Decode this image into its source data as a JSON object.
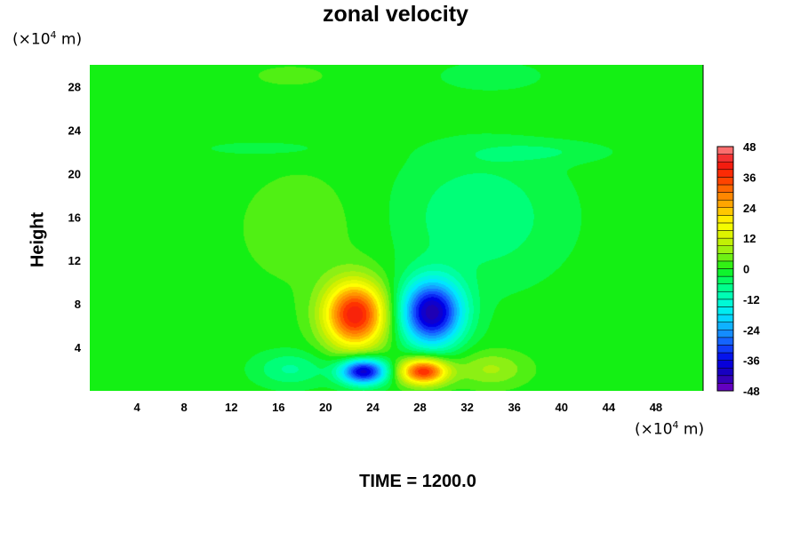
{
  "chart_data": {
    "type": "heatmap",
    "title": "zonal velocity",
    "ylabel": "Height",
    "y_unit": {
      "prefix": "(×10",
      "exp": "4",
      "suffix": " m)"
    },
    "x_unit": {
      "prefix": "(×10",
      "exp": "4",
      "suffix": " m)"
    },
    "xlim": [
      0,
      52
    ],
    "ylim": [
      0,
      30
    ],
    "x_ticks": [
      4,
      8,
      12,
      16,
      20,
      24,
      28,
      32,
      36,
      40,
      44,
      48
    ],
    "y_ticks": [
      4,
      8,
      12,
      16,
      20,
      24,
      28
    ],
    "colorbar": {
      "range": [
        -48,
        48
      ],
      "ticks": [
        48,
        36,
        24,
        12,
        0,
        -12,
        -24,
        -36,
        -48
      ],
      "stops": [
        {
          "v": -48,
          "c": "#7a00c4"
        },
        {
          "v": -42,
          "c": "#1e00b4"
        },
        {
          "v": -36,
          "c": "#0000e6"
        },
        {
          "v": -30,
          "c": "#1450ff"
        },
        {
          "v": -24,
          "c": "#14a0ff"
        },
        {
          "v": -18,
          "c": "#00e6ff"
        },
        {
          "v": -12,
          "c": "#00ffc8"
        },
        {
          "v": -6,
          "c": "#00ff78"
        },
        {
          "v": 0,
          "c": "#14f014"
        },
        {
          "v": 6,
          "c": "#8cf014"
        },
        {
          "v": 12,
          "c": "#d2f000"
        },
        {
          "v": 18,
          "c": "#ffff00"
        },
        {
          "v": 24,
          "c": "#ffb400"
        },
        {
          "v": 30,
          "c": "#ff7800"
        },
        {
          "v": 36,
          "c": "#ff3200"
        },
        {
          "v": 42,
          "c": "#f01414"
        },
        {
          "v": 48,
          "c": "#ff8c8c"
        }
      ]
    },
    "features": [
      {
        "x": 22.5,
        "y": 7.0,
        "sx": 2.6,
        "sy": 3.0,
        "amp": 40
      },
      {
        "x": 29.0,
        "y": 7.2,
        "sx": 2.6,
        "sy": 3.0,
        "amp": -42
      },
      {
        "x": 23.2,
        "y": 1.8,
        "sx": 2.0,
        "sy": 1.2,
        "amp": -40
      },
      {
        "x": 28.3,
        "y": 1.8,
        "sx": 2.0,
        "sy": 1.2,
        "amp": 38
      },
      {
        "x": 33.0,
        "y": 16.0,
        "sx": 7.0,
        "sy": 6.0,
        "amp": -7
      },
      {
        "x": 18.0,
        "y": 15.0,
        "sx": 6.0,
        "sy": 6.0,
        "amp": 3
      },
      {
        "x": 38.0,
        "y": 22.0,
        "sx": 6.0,
        "sy": 1.0,
        "amp": -4
      },
      {
        "x": 15.0,
        "y": 22.3,
        "sx": 6.0,
        "sy": 0.8,
        "amp": -3
      },
      {
        "x": 17.0,
        "y": 2.0,
        "sx": 3.0,
        "sy": 1.6,
        "amp": -8
      },
      {
        "x": 34.0,
        "y": 2.0,
        "sx": 3.0,
        "sy": 1.6,
        "amp": 8
      },
      {
        "x": 34.0,
        "y": 29.0,
        "sx": 5.0,
        "sy": 1.5,
        "amp": -3
      },
      {
        "x": 17.0,
        "y": 29.0,
        "sx": 5.0,
        "sy": 1.5,
        "amp": 2
      }
    ]
  },
  "time_label": "TIME = 1200.0"
}
